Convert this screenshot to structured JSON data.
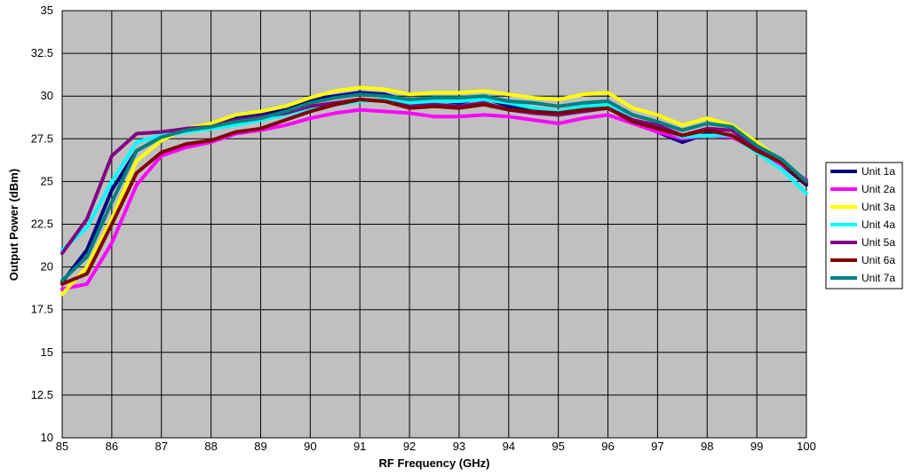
{
  "chart_data": {
    "type": "line",
    "xlabel": "RF Frequency (GHz)",
    "ylabel": "Output Power (dBm)",
    "xlim": [
      85,
      100
    ],
    "ylim": [
      10,
      35
    ],
    "x_ticks": [
      85,
      86,
      87,
      88,
      89,
      90,
      91,
      92,
      93,
      94,
      95,
      96,
      97,
      98,
      99,
      100
    ],
    "y_ticks": [
      {
        "value": 10,
        "label": "10"
      },
      {
        "value": 12.5,
        "label": "12.5"
      },
      {
        "value": 15,
        "label": "15"
      },
      {
        "value": 17.5,
        "label": "17.5"
      },
      {
        "value": 20,
        "label": "20"
      },
      {
        "value": 22.5,
        "label": "22.5"
      },
      {
        "value": 25,
        "label": "25"
      },
      {
        "value": 27.5,
        "label": "27.5"
      },
      {
        "value": 30,
        "label": "30"
      },
      {
        "value": 32.5,
        "label": "32.5"
      },
      {
        "value": 35,
        "label": "35"
      }
    ],
    "grid": true,
    "plot_background": "#c0c0c0",
    "legend_position": "right",
    "x": [
      85,
      85.5,
      86,
      86.5,
      87,
      87.5,
      88,
      88.5,
      89,
      89.5,
      90,
      90.5,
      91,
      91.5,
      92,
      92.5,
      93,
      93.5,
      94,
      94.5,
      95,
      95.5,
      96,
      96.5,
      97,
      97.5,
      98,
      98.5,
      99,
      99.5,
      100
    ],
    "series": [
      {
        "name": "Unit 1a",
        "color": "#000080",
        "values": [
          19.1,
          21.0,
          24.5,
          26.8,
          27.6,
          28.1,
          28.3,
          28.7,
          28.9,
          29.3,
          29.8,
          30.0,
          30.2,
          30.1,
          29.7,
          29.8,
          29.6,
          29.9,
          29.4,
          29.2,
          28.9,
          29.2,
          29.5,
          28.6,
          27.9,
          27.3,
          27.8,
          27.6,
          26.9,
          26.0,
          24.8
        ]
      },
      {
        "name": "Unit 2a",
        "color": "#ff00ff",
        "values": [
          18.7,
          19.0,
          21.4,
          24.8,
          26.5,
          27.0,
          27.3,
          27.8,
          28.0,
          28.3,
          28.7,
          29.0,
          29.2,
          29.1,
          29.0,
          28.8,
          28.8,
          28.9,
          28.8,
          28.6,
          28.4,
          28.7,
          28.9,
          28.4,
          27.9,
          27.5,
          27.7,
          27.6,
          26.8,
          26.0,
          25.1
        ]
      },
      {
        "name": "Unit 3a",
        "color": "#ffff00",
        "values": [
          18.4,
          20.0,
          22.8,
          26.2,
          27.4,
          28.1,
          28.4,
          28.9,
          29.1,
          29.4,
          29.9,
          30.3,
          30.5,
          30.4,
          30.1,
          30.2,
          30.2,
          30.3,
          30.1,
          29.9,
          29.8,
          30.1,
          30.2,
          29.3,
          28.9,
          28.3,
          28.7,
          28.3,
          27.3,
          26.2,
          25.0
        ]
      },
      {
        "name": "Unit 4a",
        "color": "#00ffff",
        "values": [
          21.0,
          22.3,
          25.0,
          27.3,
          27.7,
          27.9,
          28.1,
          28.3,
          28.6,
          28.9,
          29.3,
          29.5,
          29.7,
          29.8,
          29.6,
          29.7,
          29.7,
          29.8,
          29.6,
          29.3,
          29.1,
          29.4,
          29.5,
          28.6,
          28.2,
          27.6,
          27.7,
          27.7,
          26.7,
          25.7,
          24.3
        ]
      },
      {
        "name": "Unit 5a",
        "color": "#800080",
        "values": [
          20.8,
          22.8,
          26.5,
          27.8,
          27.9,
          28.1,
          28.2,
          28.6,
          28.8,
          29.0,
          29.4,
          29.6,
          29.8,
          29.7,
          29.4,
          29.5,
          29.4,
          29.6,
          29.2,
          29.0,
          28.9,
          29.1,
          29.3,
          28.6,
          28.3,
          27.7,
          28.1,
          28.0,
          26.9,
          26.1,
          25.0
        ]
      },
      {
        "name": "Unit 6a",
        "color": "#800000",
        "values": [
          19.0,
          19.6,
          22.5,
          25.5,
          26.7,
          27.2,
          27.4,
          27.9,
          28.1,
          28.6,
          29.1,
          29.5,
          29.8,
          29.7,
          29.3,
          29.4,
          29.3,
          29.5,
          29.2,
          29.1,
          29.0,
          29.2,
          29.3,
          28.5,
          28.1,
          27.7,
          28.0,
          27.7,
          26.8,
          26.1,
          24.9
        ]
      },
      {
        "name": "Unit 7a",
        "color": "#008080",
        "values": [
          19.2,
          20.6,
          23.8,
          26.8,
          27.6,
          28.0,
          28.2,
          28.5,
          28.7,
          29.1,
          29.6,
          29.9,
          30.1,
          30.0,
          29.8,
          29.9,
          29.9,
          30.0,
          29.7,
          29.6,
          29.4,
          29.6,
          29.7,
          28.9,
          28.5,
          28.0,
          28.4,
          28.2,
          27.1,
          26.3,
          25.0
        ]
      }
    ]
  }
}
